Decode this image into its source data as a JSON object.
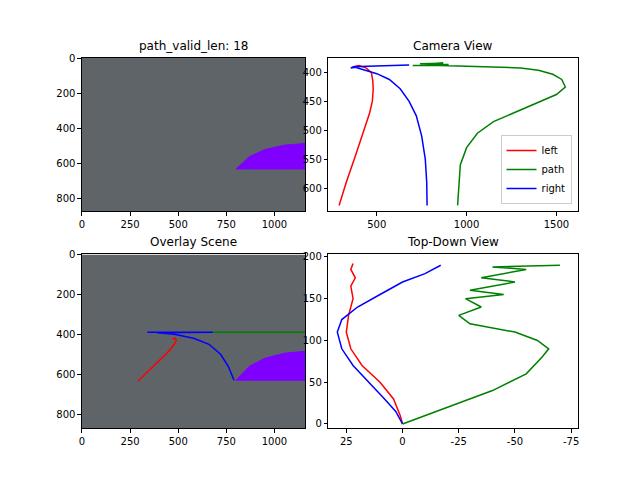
{
  "chart_data": [
    {
      "type": "line",
      "title": "path_valid_len: 18",
      "xlim": [
        0,
        1160
      ],
      "ylim": [
        870,
        0
      ],
      "xticks": [
        0,
        250,
        500,
        750,
        1000
      ],
      "yticks": [
        0,
        200,
        400,
        600,
        800
      ],
      "grid": false,
      "series": [
        {
          "type": "area",
          "color": "#7f00ff",
          "x": [
            800,
            870,
            950,
            1050,
            1160,
            1160,
            800
          ],
          "values": [
            630,
            560,
            520,
            495,
            485,
            630,
            630
          ]
        }
      ]
    },
    {
      "type": "line",
      "title": "Camera View",
      "xlim": [
        230,
        1620
      ],
      "ylim": [
        640,
        375
      ],
      "xticks": [
        500,
        1000,
        1500
      ],
      "yticks": [
        400,
        450,
        500,
        550,
        600
      ],
      "grid": false,
      "legend": "lower right",
      "series": [
        {
          "name": "left",
          "color": "#ff0000",
          "x": [
            290,
            330,
            380,
            430,
            460,
            475,
            480,
            478,
            470,
            440,
            400,
            370
          ],
          "values": [
            630,
            590,
            545,
            500,
            470,
            450,
            430,
            415,
            400,
            392,
            388,
            390
          ]
        },
        {
          "name": "path",
          "color": "#008000",
          "x": [
            950,
            955,
            965,
            1000,
            1060,
            1150,
            1280,
            1400,
            1500,
            1550,
            1530,
            1480,
            1400,
            1300,
            1150,
            1000,
            850,
            700,
            900,
            740,
            870,
            760
          ],
          "values": [
            630,
            600,
            560,
            530,
            505,
            485,
            468,
            452,
            438,
            425,
            412,
            403,
            396,
            392,
            390,
            389,
            388,
            388,
            386,
            385,
            384,
            386
          ]
        },
        {
          "name": "right",
          "color": "#0000ff",
          "x": [
            780,
            778,
            770,
            750,
            720,
            680,
            630,
            570,
            500,
            430,
            380,
            355,
            370,
            450,
            560,
            680
          ],
          "values": [
            630,
            590,
            550,
            510,
            475,
            450,
            428,
            412,
            402,
            395,
            391,
            392,
            390,
            389,
            388,
            387
          ]
        }
      ]
    },
    {
      "type": "line",
      "title": "Overlay Scene",
      "xlim": [
        0,
        1160
      ],
      "ylim": [
        870,
        0
      ],
      "xticks": [
        0,
        250,
        500,
        750,
        1000
      ],
      "yticks": [
        0,
        200,
        400,
        600,
        800
      ],
      "grid": false,
      "series": [
        {
          "type": "area",
          "color": "#7f00ff",
          "x": [
            800,
            870,
            950,
            1050,
            1160,
            1160,
            800
          ],
          "values": [
            630,
            560,
            520,
            495,
            485,
            630,
            630
          ]
        },
        {
          "color": "#ff0000",
          "x": [
            290,
            340,
            390,
            430,
            460,
            480,
            490,
            485,
            470
          ],
          "values": [
            635,
            590,
            545,
            505,
            475,
            450,
            430,
            420,
            425
          ]
        },
        {
          "color": "#008000",
          "x": [
            680,
            1160
          ],
          "values": [
            390,
            390
          ]
        },
        {
          "color": "#0000ff",
          "x": [
            340,
            680,
            680,
            390,
            480,
            580,
            660,
            720,
            760,
            790
          ],
          "values": [
            390,
            390,
            392,
            392,
            400,
            420,
            450,
            500,
            560,
            630
          ]
        }
      ]
    },
    {
      "type": "line",
      "title": "Top-Down View",
      "xlim": [
        33,
        -78
      ],
      "ylim": [
        -5,
        203
      ],
      "xticks": [
        25,
        0,
        -25,
        -50,
        -75
      ],
      "yticks": [
        0,
        50,
        100,
        150,
        200
      ],
      "grid": false,
      "series": [
        {
          "color": "#ff0000",
          "x": [
            0,
            1,
            4,
            10,
            18,
            23,
            25,
            24,
            22,
            23,
            21,
            23,
            22
          ],
          "values": [
            0,
            10,
            30,
            50,
            70,
            90,
            110,
            130,
            150,
            165,
            175,
            185,
            192
          ]
        },
        {
          "color": "#0000ff",
          "x": [
            0,
            3,
            8,
            15,
            22,
            27,
            29,
            27,
            20,
            10,
            0,
            -10,
            -17
          ],
          "values": [
            0,
            15,
            30,
            50,
            70,
            90,
            110,
            125,
            140,
            155,
            170,
            180,
            190
          ]
        },
        {
          "color": "#008000",
          "x": [
            0,
            -10,
            -25,
            -40,
            -55,
            -62,
            -65,
            -60,
            -50,
            -40,
            -30,
            -25,
            -35,
            -28,
            -45,
            -30,
            -40,
            -50,
            -35,
            -45,
            -55,
            -40,
            -70
          ],
          "values": [
            0,
            10,
            25,
            40,
            60,
            80,
            90,
            100,
            110,
            115,
            120,
            130,
            140,
            150,
            155,
            160,
            165,
            170,
            175,
            180,
            185,
            188,
            190
          ]
        }
      ]
    }
  ]
}
